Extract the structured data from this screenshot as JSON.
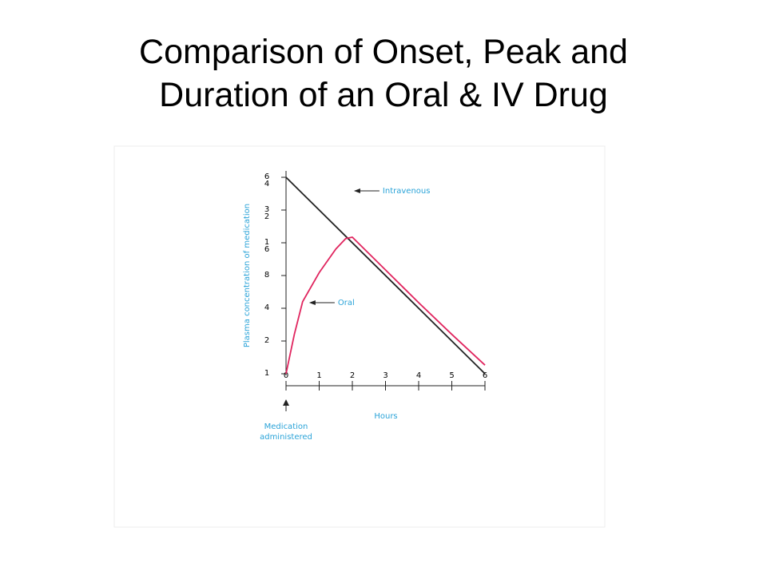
{
  "chart_data": {
    "type": "line",
    "title": "Comparison of Onset, Peak and Duration of an Oral & IV Drug",
    "xlabel": "Hours",
    "ylabel": "Plasma concentration of medication",
    "x": [
      0,
      0.25,
      0.5,
      1,
      1.5,
      1.8,
      2,
      3,
      4,
      5,
      6
    ],
    "series": [
      {
        "name": "Intravenous",
        "color": "#222222",
        "values": [
          64,
          null,
          null,
          null,
          null,
          null,
          null,
          null,
          null,
          null,
          1
        ]
      },
      {
        "name": "Oral",
        "color": "#e0245e",
        "values": [
          1,
          2.3,
          4.6,
          8.5,
          14,
          17.5,
          18,
          9,
          4.5,
          2.3,
          1.2
        ]
      }
    ],
    "xlim": [
      0,
      6
    ],
    "xticks": [
      0,
      1,
      2,
      3,
      4,
      5,
      6
    ],
    "ylim": [
      1,
      64
    ],
    "yticks": [
      1,
      2,
      4,
      8,
      16,
      32,
      64
    ],
    "log_y": true,
    "medication_note": [
      "Medication",
      "administered"
    ]
  }
}
